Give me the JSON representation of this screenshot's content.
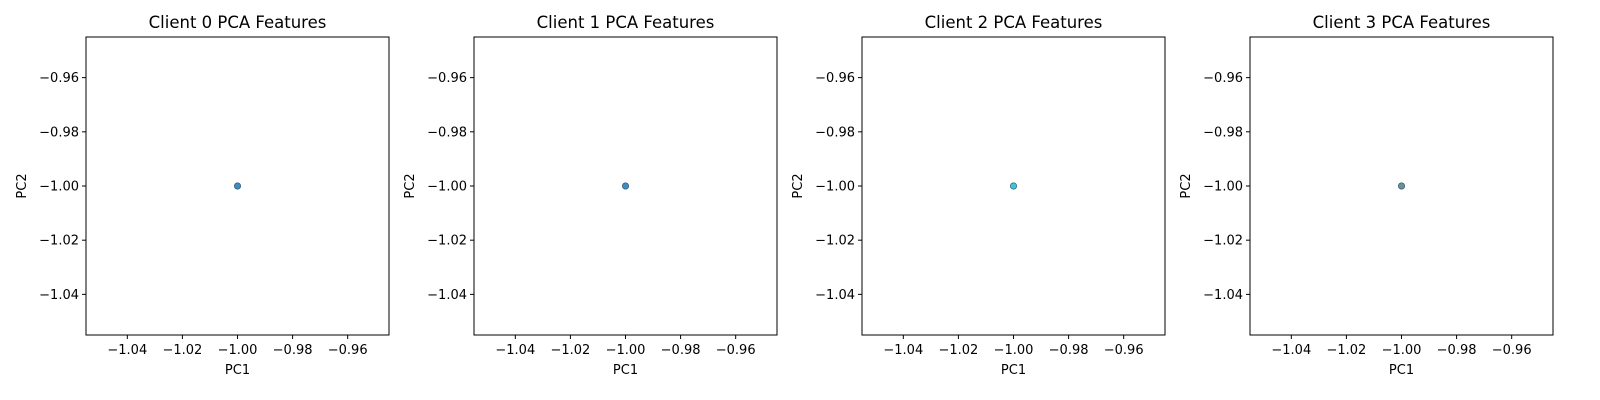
{
  "chart_data": [
    {
      "type": "scatter",
      "title": "Client 0 PCA Features",
      "xlabel": "PC1",
      "ylabel": "PC2",
      "xlim": [
        -1.055,
        -0.945
      ],
      "ylim": [
        -1.055,
        -0.945
      ],
      "xticks": [
        -1.04,
        -1.02,
        -1.0,
        -0.98,
        -0.96
      ],
      "yticks": [
        -0.96,
        -0.98,
        -1.0,
        -1.02,
        -1.04
      ],
      "xtick_labels": [
        "−1.04",
        "−1.02",
        "−1.00",
        "−0.98",
        "−0.96"
      ],
      "ytick_labels": [
        "−0.96",
        "−0.98",
        "−1.00",
        "−1.02",
        "−1.04"
      ],
      "grid": false,
      "points": [
        {
          "x": -1.0,
          "y": -1.0
        }
      ],
      "color": "#1f77b4"
    },
    {
      "type": "scatter",
      "title": "Client 1 PCA Features",
      "xlabel": "PC1",
      "ylabel": "PC2",
      "xlim": [
        -1.055,
        -0.945
      ],
      "ylim": [
        -1.055,
        -0.945
      ],
      "xticks": [
        -1.04,
        -1.02,
        -1.0,
        -0.98,
        -0.96
      ],
      "yticks": [
        -0.96,
        -0.98,
        -1.0,
        -1.02,
        -1.04
      ],
      "xtick_labels": [
        "−1.04",
        "−1.02",
        "−1.00",
        "−0.98",
        "−0.96"
      ],
      "ytick_labels": [
        "−0.96",
        "−0.98",
        "−1.00",
        "−1.02",
        "−1.04"
      ],
      "grid": false,
      "points": [
        {
          "x": -1.0,
          "y": -1.0
        }
      ],
      "color": "#1f77b4"
    },
    {
      "type": "scatter",
      "title": "Client 2 PCA Features",
      "xlabel": "PC1",
      "ylabel": "PC2",
      "xlim": [
        -1.055,
        -0.945
      ],
      "ylim": [
        -1.055,
        -0.945
      ],
      "xticks": [
        -1.04,
        -1.02,
        -1.0,
        -0.98,
        -0.96
      ],
      "yticks": [
        -0.96,
        -0.98,
        -1.0,
        -1.02,
        -1.04
      ],
      "xtick_labels": [
        "−1.04",
        "−1.02",
        "−1.00",
        "−0.98",
        "−0.96"
      ],
      "ytick_labels": [
        "−0.96",
        "−0.98",
        "−1.00",
        "−1.02",
        "−1.04"
      ],
      "grid": false,
      "points": [
        {
          "x": -1.0,
          "y": -1.0
        }
      ],
      "color": "#17becf"
    },
    {
      "type": "scatter",
      "title": "Client 3 PCA Features",
      "xlabel": "PC1",
      "ylabel": "PC2",
      "xlim": [
        -1.055,
        -0.945
      ],
      "ylim": [
        -1.055,
        -0.945
      ],
      "xticks": [
        -1.04,
        -1.02,
        -1.0,
        -0.98,
        -0.96
      ],
      "yticks": [
        -0.96,
        -0.98,
        -1.0,
        -1.02,
        -1.04
      ],
      "xtick_labels": [
        "−1.04",
        "−1.02",
        "−1.00",
        "−0.98",
        "−0.96"
      ],
      "ytick_labels": [
        "−0.96",
        "−0.98",
        "−1.00",
        "−1.02",
        "−1.04"
      ],
      "grid": false,
      "points": [
        {
          "x": -1.0,
          "y": -1.0
        }
      ],
      "color": "#4f7f7f"
    }
  ]
}
